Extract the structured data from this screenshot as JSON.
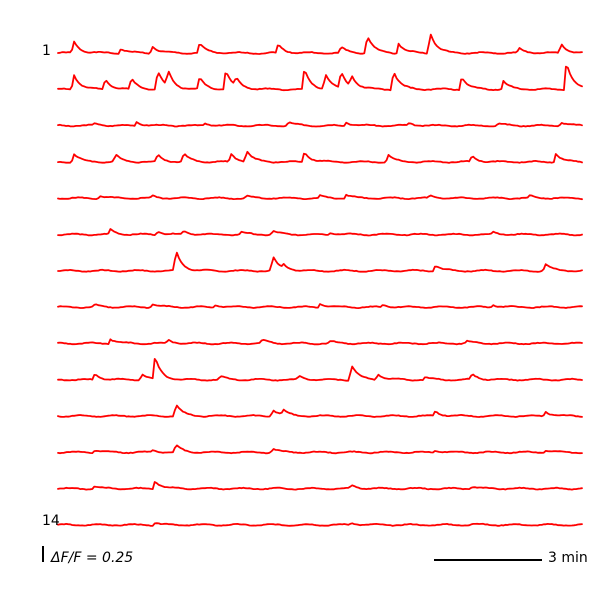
{
  "chart_data": {
    "type": "line",
    "title": "",
    "xlabel": "",
    "ylabel": "",
    "trace_color": "#ff0000",
    "num_traces": 14,
    "row_labels": {
      "first": "1",
      "last": "14"
    },
    "scale_bars": {
      "amplitude_label": "ΔF/F = 0.25",
      "amplitude_value": 0.25,
      "time_label": "3 min",
      "time_value_min": 3
    },
    "series": [
      {
        "events": [
          [
            0.03,
            0.1
          ],
          [
            0.12,
            0.04
          ],
          [
            0.18,
            0.06
          ],
          [
            0.27,
            0.08
          ],
          [
            0.42,
            0.07
          ],
          [
            0.54,
            0.05
          ],
          [
            0.59,
            0.15
          ],
          [
            0.65,
            0.08
          ],
          [
            0.71,
            0.18
          ],
          [
            0.88,
            0.04
          ],
          [
            0.96,
            0.08
          ]
        ]
      },
      {
        "events": [
          [
            0.03,
            0.13
          ],
          [
            0.09,
            0.09
          ],
          [
            0.14,
            0.09
          ],
          [
            0.19,
            0.16
          ],
          [
            0.21,
            0.13
          ],
          [
            0.27,
            0.1
          ],
          [
            0.32,
            0.16
          ],
          [
            0.34,
            0.07
          ],
          [
            0.47,
            0.17
          ],
          [
            0.51,
            0.13
          ],
          [
            0.54,
            0.14
          ],
          [
            0.56,
            0.1
          ],
          [
            0.64,
            0.16
          ],
          [
            0.77,
            0.11
          ],
          [
            0.85,
            0.07
          ],
          [
            0.97,
            0.24
          ]
        ]
      },
      {
        "events": [
          [
            0.07,
            0.02
          ],
          [
            0.15,
            0.03
          ],
          [
            0.28,
            0.02
          ],
          [
            0.44,
            0.03
          ],
          [
            0.55,
            0.03
          ],
          [
            0.67,
            0.02
          ],
          [
            0.84,
            0.02
          ],
          [
            0.96,
            0.03
          ]
        ]
      },
      {
        "events": [
          [
            0.03,
            0.07
          ],
          [
            0.11,
            0.06
          ],
          [
            0.19,
            0.06
          ],
          [
            0.24,
            0.07
          ],
          [
            0.33,
            0.07
          ],
          [
            0.36,
            0.09
          ],
          [
            0.47,
            0.09
          ],
          [
            0.63,
            0.06
          ],
          [
            0.79,
            0.05
          ],
          [
            0.95,
            0.07
          ]
        ]
      },
      {
        "events": [
          [
            0.08,
            0.02
          ],
          [
            0.18,
            0.02
          ],
          [
            0.36,
            0.02
          ],
          [
            0.5,
            0.02
          ],
          [
            0.55,
            0.03
          ],
          [
            0.71,
            0.02
          ],
          [
            0.9,
            0.02
          ]
        ]
      },
      {
        "events": [
          [
            0.1,
            0.04
          ],
          [
            0.19,
            0.03
          ],
          [
            0.24,
            0.03
          ],
          [
            0.35,
            0.02
          ],
          [
            0.41,
            0.03
          ],
          [
            0.52,
            0.02
          ],
          [
            0.83,
            0.02
          ]
        ]
      },
      {
        "events": [
          [
            0.225,
            0.17
          ],
          [
            0.41,
            0.12
          ],
          [
            0.43,
            0.04
          ],
          [
            0.72,
            0.05
          ],
          [
            0.93,
            0.06
          ]
        ]
      },
      {
        "events": [
          [
            0.07,
            0.02
          ],
          [
            0.18,
            0.03
          ],
          [
            0.3,
            0.02
          ],
          [
            0.5,
            0.03
          ],
          [
            0.62,
            0.02
          ],
          [
            0.83,
            0.02
          ]
        ]
      },
      {
        "events": [
          [
            0.1,
            0.04
          ],
          [
            0.21,
            0.03
          ],
          [
            0.39,
            0.03
          ],
          [
            0.52,
            0.02
          ],
          [
            0.78,
            0.02
          ]
        ]
      },
      {
        "events": [
          [
            0.07,
            0.05
          ],
          [
            0.16,
            0.05
          ],
          [
            0.185,
            0.18
          ],
          [
            0.31,
            0.03
          ],
          [
            0.46,
            0.03
          ],
          [
            0.56,
            0.13
          ],
          [
            0.61,
            0.05
          ],
          [
            0.7,
            0.02
          ],
          [
            0.79,
            0.05
          ]
        ]
      },
      {
        "events": [
          [
            0.225,
            0.1
          ],
          [
            0.41,
            0.06
          ],
          [
            0.43,
            0.04
          ],
          [
            0.72,
            0.04
          ],
          [
            0.93,
            0.04
          ]
        ]
      },
      {
        "events": [
          [
            0.07,
            0.02
          ],
          [
            0.18,
            0.02
          ],
          [
            0.225,
            0.06
          ],
          [
            0.41,
            0.03
          ],
          [
            0.72,
            0.02
          ],
          [
            0.93,
            0.02
          ]
        ]
      },
      {
        "events": [
          [
            0.07,
            0.02
          ],
          [
            0.185,
            0.07
          ],
          [
            0.56,
            0.03
          ],
          [
            0.79,
            0.02
          ]
        ]
      },
      {
        "events": [
          [
            0.185,
            0.02
          ],
          [
            0.56,
            0.02
          ],
          [
            0.79,
            0.01
          ]
        ]
      }
    ]
  }
}
